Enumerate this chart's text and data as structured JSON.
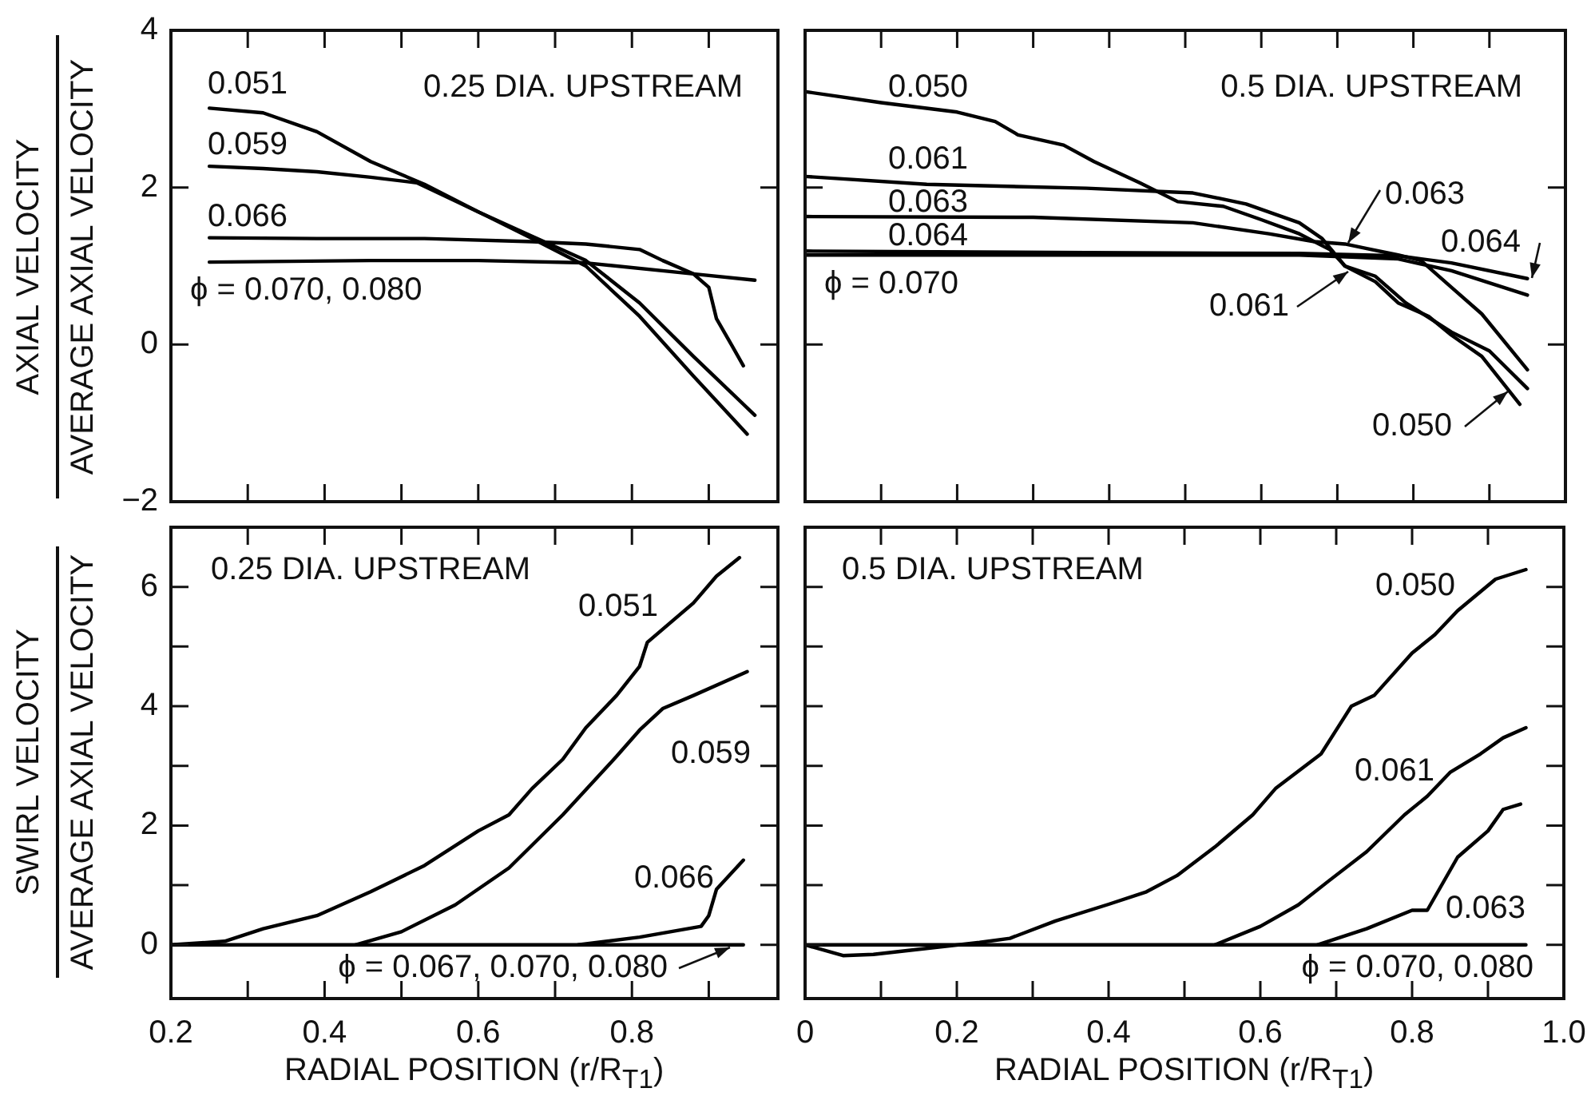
{
  "chart_data": [
    {
      "type": "line",
      "title": "0.25 DIA. UPSTREAM",
      "ylabel": "AXIAL VELOCITY\nAVERAGE AXIAL VELOCITY",
      "marker": "none",
      "tick_labels": "y",
      "xlim": [
        0.2,
        0.99
      ],
      "xticks": [
        0.3,
        0.4,
        0.5,
        0.6,
        0.7,
        0.8,
        0.9
      ],
      "ylim": [
        -2,
        4
      ],
      "yticks": [
        {
          "value": -2,
          "label": "−2"
        },
        0,
        2,
        4
      ],
      "series": [
        {
          "name": "0.051",
          "color": "#000000",
          "x": [
            0.25,
            0.32,
            0.39,
            0.46,
            0.53,
            0.6,
            0.67,
            0.74,
            0.81,
            0.88,
            0.95
          ],
          "values": [
            3.01,
            2.95,
            2.71,
            2.33,
            2.04,
            1.69,
            1.35,
            1.0,
            0.36,
            -0.4,
            -1.14
          ]
        },
        {
          "name": "0.059",
          "color": "#000000",
          "x": [
            0.25,
            0.32,
            0.39,
            0.46,
            0.52,
            0.6,
            0.67,
            0.74,
            0.81,
            0.88,
            0.96
          ],
          "values": [
            2.27,
            2.24,
            2.2,
            2.13,
            2.06,
            1.69,
            1.38,
            1.07,
            0.53,
            -0.15,
            -0.9
          ]
        },
        {
          "name": "0.066",
          "color": "#000000",
          "x": [
            0.25,
            0.39,
            0.53,
            0.67,
            0.74,
            0.81,
            0.84,
            0.88,
            0.9,
            0.91,
            0.93,
            0.945
          ],
          "values": [
            1.36,
            1.35,
            1.35,
            1.31,
            1.28,
            1.21,
            1.07,
            0.9,
            0.73,
            0.33,
            -0.01,
            -0.27
          ]
        },
        {
          "name": "ϕ = 0.070, 0.080",
          "color": "#000000",
          "x": [
            0.25,
            0.46,
            0.6,
            0.74,
            0.88,
            0.96
          ],
          "values": [
            1.05,
            1.07,
            1.07,
            1.04,
            0.9,
            0.82
          ]
        }
      ]
    },
    {
      "type": "line",
      "title": "0.5 DIA. UPSTREAM",
      "marker": "none",
      "tick_labels": false,
      "xlim": [
        0,
        1.0
      ],
      "xticks": [
        0,
        0.1,
        0.2,
        0.3,
        0.4,
        0.5,
        0.6,
        0.7,
        0.8,
        0.9
      ],
      "ylim": [
        -2,
        4
      ],
      "yticks": [
        -2,
        0,
        2,
        4
      ],
      "series": [
        {
          "name": "0.050",
          "color": "#000000",
          "x": [
            0,
            0.1,
            0.2,
            0.25,
            0.28,
            0.34,
            0.38,
            0.44,
            0.49,
            0.55,
            0.6,
            0.65,
            0.69,
            0.71,
            0.75,
            0.78,
            0.82,
            0.85,
            0.89,
            0.94
          ],
          "values": [
            3.22,
            3.08,
            2.96,
            2.84,
            2.67,
            2.54,
            2.33,
            2.06,
            1.82,
            1.76,
            1.59,
            1.41,
            1.21,
            1.0,
            0.8,
            0.53,
            0.36,
            0.12,
            -0.15,
            -0.76
          ]
        },
        {
          "name": "0.061",
          "color": "#000000",
          "x": [
            0,
            0.16,
            0.37,
            0.51,
            0.58,
            0.65,
            0.68,
            0.71,
            0.75,
            0.79,
            0.85,
            0.9,
            0.95
          ],
          "values": [
            2.14,
            2.04,
            1.99,
            1.93,
            1.79,
            1.55,
            1.35,
            1.0,
            0.87,
            0.53,
            0.16,
            -0.08,
            -0.56
          ]
        },
        {
          "name": "0.063",
          "color": "#000000",
          "x": [
            0,
            0.3,
            0.51,
            0.61,
            0.67,
            0.71,
            0.74,
            0.78,
            0.81,
            0.85,
            0.89,
            0.95
          ],
          "values": [
            1.63,
            1.62,
            1.55,
            1.41,
            1.31,
            1.28,
            1.22,
            1.14,
            1.07,
            0.73,
            0.39,
            -0.32
          ]
        },
        {
          "name": "0.064",
          "color": "#000000",
          "x": [
            0,
            0.37,
            0.65,
            0.78,
            0.85,
            0.95
          ],
          "values": [
            1.19,
            1.17,
            1.16,
            1.13,
            1.04,
            0.84
          ]
        },
        {
          "name": "ϕ = 0.070",
          "color": "#000000",
          "x": [
            0,
            0.37,
            0.65,
            0.78,
            0.85,
            0.95
          ],
          "values": [
            1.14,
            1.14,
            1.14,
            1.09,
            0.94,
            0.63
          ]
        }
      ]
    },
    {
      "type": "line",
      "title": "0.25 DIA. UPSTREAM",
      "xlabel": "RADIAL POSITION (r/R$_{T1}$)",
      "ylabel": "SWIRL VELOCITY\nAVERAGE AXIAL VELOCITY",
      "marker": "none",
      "xlim": [
        0.2,
        0.99
      ],
      "xticks": [
        0.2,
        {
          "value": 0.3,
          "label": null
        },
        0.4,
        {
          "value": 0.5,
          "label": null
        },
        0.6,
        {
          "value": 0.7,
          "label": null
        },
        0.8,
        {
          "value": 0.9,
          "label": null
        }
      ],
      "ylim": [
        -0.9,
        7
      ],
      "yticks": [
        0,
        {
          "value": 1,
          "label": null
        },
        2,
        {
          "value": 3,
          "label": null
        },
        4,
        {
          "value": 5,
          "label": null
        },
        6
      ],
      "series": [
        {
          "name": "0.051",
          "color": "#000000",
          "x": [
            0.2,
            0.27,
            0.32,
            0.39,
            0.46,
            0.53,
            0.6,
            0.64,
            0.67,
            0.71,
            0.74,
            0.78,
            0.81,
            0.82,
            0.88,
            0.91,
            0.94
          ],
          "values": [
            0,
            0.06,
            0.27,
            0.49,
            0.89,
            1.33,
            1.91,
            2.18,
            2.62,
            3.11,
            3.64,
            4.18,
            4.67,
            5.07,
            5.73,
            6.18,
            6.49
          ]
        },
        {
          "name": "0.059",
          "color": "#000000",
          "x": [
            0.44,
            0.5,
            0.57,
            0.64,
            0.71,
            0.78,
            0.81,
            0.84,
            0.88,
            0.95
          ],
          "values": [
            0,
            0.22,
            0.67,
            1.29,
            2.18,
            3.16,
            3.6,
            3.96,
            4.18,
            4.58
          ]
        },
        {
          "name": "0.066",
          "color": "#000000",
          "x": [
            0.73,
            0.81,
            0.89,
            0.9,
            0.91,
            0.945
          ],
          "values": [
            0,
            0.13,
            0.31,
            0.49,
            0.93,
            1.42
          ]
        },
        {
          "name": "ϕ = 0.067, 0.070, 0.080",
          "color": "#000000",
          "x": [
            0.2,
            0.945
          ],
          "values": [
            0,
            0
          ]
        }
      ]
    },
    {
      "type": "line",
      "title": "0.5 DIA. UPSTREAM",
      "xlabel": "RADIAL POSITION (r/R$_{T1}$)",
      "marker": "none",
      "tick_labels": "x",
      "xlim": [
        0,
        1.0
      ],
      "xticks": [
        0,
        {
          "value": 0.1,
          "label": null
        },
        0.2,
        {
          "value": 0.3,
          "label": null
        },
        0.4,
        {
          "value": 0.5,
          "label": null
        },
        0.6,
        {
          "value": 0.7,
          "label": null
        },
        0.8,
        {
          "value": 0.9,
          "label": null
        },
        {
          "value": 1,
          "label": "1.0"
        }
      ],
      "ylim": [
        -0.9,
        7
      ],
      "yticks": [
        0,
        1,
        2,
        3,
        4,
        5,
        6
      ],
      "series": [
        {
          "name": "0.050",
          "color": "#000000",
          "x": [
            0,
            0.05,
            0.09,
            0.16,
            0.23,
            0.27,
            0.33,
            0.4,
            0.45,
            0.49,
            0.54,
            0.59,
            0.62,
            0.68,
            0.7,
            0.72,
            0.75,
            0.8,
            0.83,
            0.86,
            0.91,
            0.95
          ],
          "values": [
            0,
            -0.18,
            -0.16,
            -0.06,
            0.04,
            0.11,
            0.4,
            0.68,
            0.89,
            1.16,
            1.64,
            2.18,
            2.62,
            3.2,
            3.6,
            4.0,
            4.18,
            4.89,
            5.2,
            5.6,
            6.13,
            6.29
          ]
        },
        {
          "name": "0.061",
          "color": "#000000",
          "x": [
            0.54,
            0.6,
            0.65,
            0.69,
            0.74,
            0.79,
            0.82,
            0.85,
            0.89,
            0.92,
            0.95
          ],
          "values": [
            0,
            0.31,
            0.67,
            1.07,
            1.56,
            2.18,
            2.49,
            2.89,
            3.2,
            3.47,
            3.64
          ]
        },
        {
          "name": "0.063",
          "color": "#000000",
          "x": [
            0.675,
            0.74,
            0.8,
            0.82,
            0.86,
            0.9,
            0.92,
            0.943
          ],
          "values": [
            0,
            0.27,
            0.58,
            0.58,
            1.47,
            1.91,
            2.27,
            2.36
          ]
        },
        {
          "name": "ϕ = 0.070, 0.080",
          "color": "#000000",
          "x": [
            0,
            0.95
          ],
          "values": [
            0,
            0
          ]
        }
      ]
    }
  ]
}
